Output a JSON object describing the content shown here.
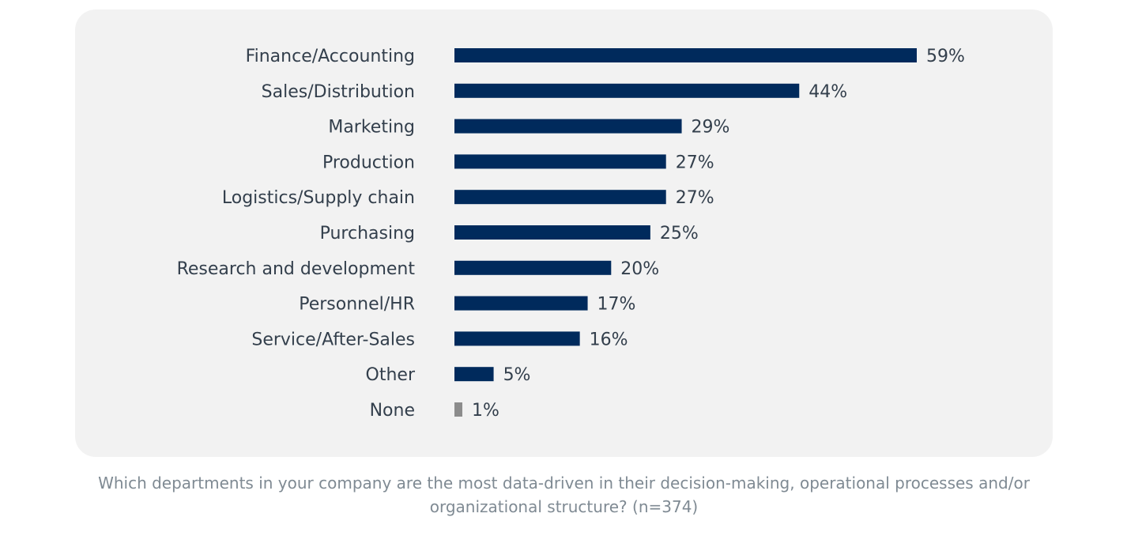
{
  "chart_data": {
    "type": "bar",
    "orientation": "horizontal",
    "categories": [
      "Finance/Accounting",
      "Sales/Distribution",
      "Marketing",
      "Production",
      "Logistics/Supply chain",
      "Purchasing",
      "Research and development",
      "Personnel/HR",
      "Service/After-Sales",
      "Other",
      "None"
    ],
    "values": [
      59,
      44,
      29,
      27,
      27,
      25,
      20,
      17,
      16,
      5,
      1
    ],
    "value_labels": [
      "59%",
      "44%",
      "29%",
      "27%",
      "27%",
      "25%",
      "20%",
      "17%",
      "16%",
      "5%",
      "1%"
    ],
    "unit": "%",
    "bar_colors": [
      "#002a5c",
      "#002a5c",
      "#002a5c",
      "#002a5c",
      "#002a5c",
      "#002a5c",
      "#002a5c",
      "#002a5c",
      "#002a5c",
      "#002a5c",
      "#8c8c8c"
    ],
    "xlim": [
      0,
      59
    ],
    "grid": false,
    "legend": "none"
  },
  "caption": "Which departments in your company are the most data-driven in their decision-making, operational processes and/or organizational structure? (n=374)"
}
